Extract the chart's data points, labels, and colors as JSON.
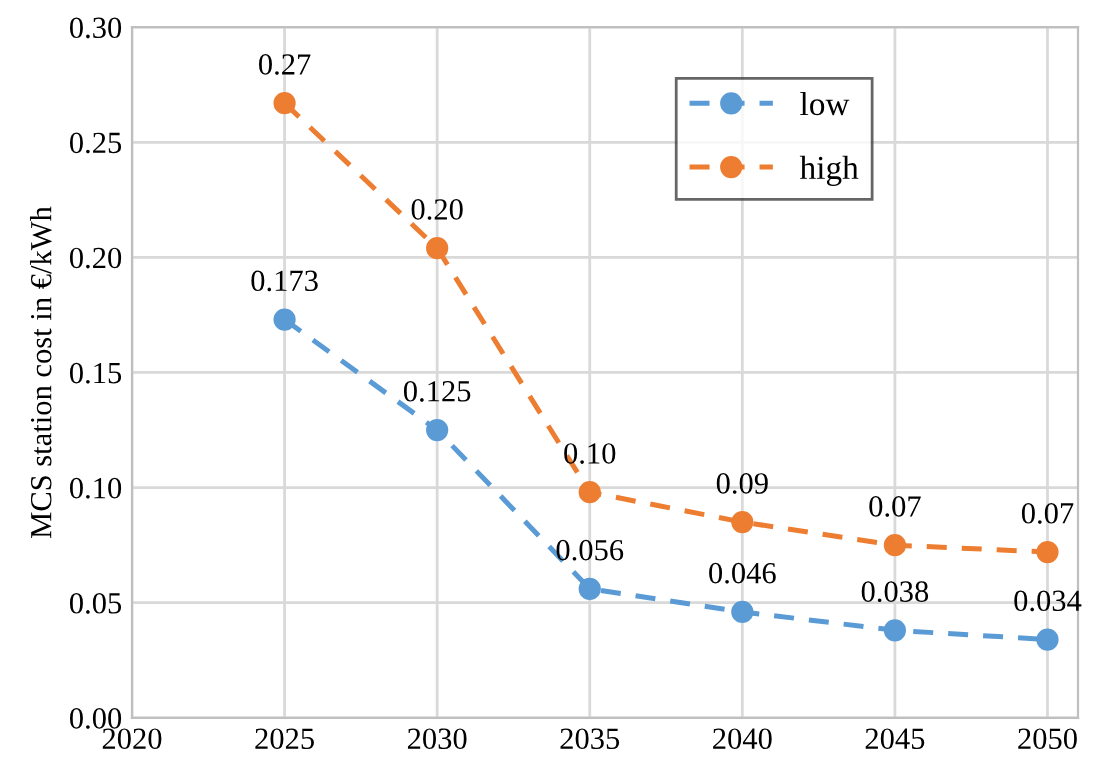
{
  "chart_data": {
    "type": "line",
    "ylabel": "MCS station cost in €/kWh",
    "x": [
      2025,
      2030,
      2035,
      2040,
      2045,
      2050
    ],
    "series": [
      {
        "name": "low",
        "color": "#5b9bd5",
        "values": [
          0.173,
          0.125,
          0.056,
          0.046,
          0.038,
          0.034
        ],
        "value_labels": [
          "0.173",
          "0.125",
          "0.056",
          "0.046",
          "0.038",
          "0.034"
        ]
      },
      {
        "name": "high",
        "color": "#ed7d31",
        "values": [
          0.267,
          0.204,
          0.098,
          0.085,
          0.075,
          0.072
        ],
        "value_labels": [
          "0.27",
          "0.20",
          "0.10",
          "0.09",
          "0.07",
          "0.07"
        ]
      }
    ],
    "xlim": [
      2020,
      2051
    ],
    "xticks": [
      2020,
      2025,
      2030,
      2035,
      2040,
      2045,
      2050
    ],
    "ylim": [
      0,
      0.3
    ],
    "yticks": [
      {
        "value": 0,
        "label": "0.00"
      },
      {
        "value": 0.05,
        "label": "0.05"
      },
      {
        "value": 0.1,
        "label": "0.10"
      },
      {
        "value": 0.15,
        "label": "0.15"
      },
      {
        "value": 0.2,
        "label": "0.20"
      },
      {
        "value": 0.25,
        "label": "0.25"
      },
      {
        "value": 0.3,
        "label": "0.30"
      }
    ],
    "grid": true,
    "legend": "top right",
    "marker": "circle",
    "line_style": "dashed"
  }
}
